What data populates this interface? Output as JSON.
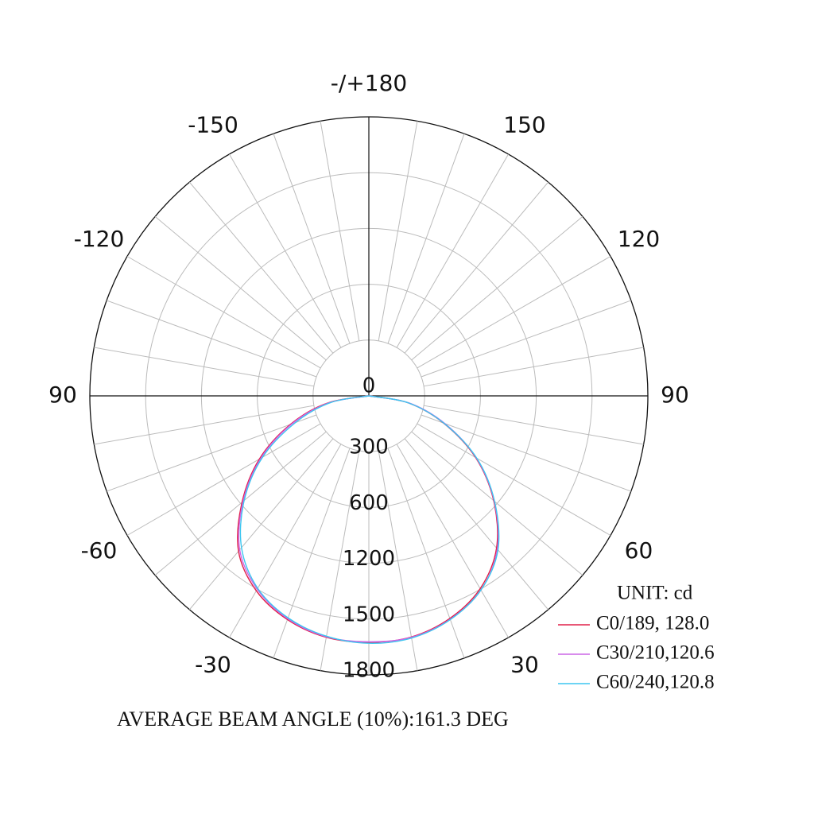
{
  "chart_data": {
    "type": "polar",
    "theta_ticks": [
      {
        "value": 180,
        "label": "-/+180"
      },
      -150,
      150,
      -120,
      120,
      {
        "value": -90,
        "label": "90"
      },
      90,
      -60,
      60,
      -30,
      30
    ],
    "theta_grid_step": 10,
    "rlim": [
      0,
      1800
    ],
    "rticks": [
      0,
      300,
      600,
      1200,
      1500,
      1800
    ],
    "x": [
      -90,
      -80,
      -70,
      -60,
      -50,
      -40,
      -30,
      -20,
      -10,
      0,
      10,
      20,
      30,
      40,
      50,
      60,
      70,
      80,
      90
    ],
    "series": [
      {
        "name": "C0/189, 128.0",
        "color": "#e0204a",
        "values": [
          0,
          230,
          450,
          760,
          1180,
          1390,
          1510,
          1580,
          1618,
          1625,
          1616,
          1573,
          1497,
          1368,
          1152,
          725,
          427,
          214,
          0
        ]
      },
      {
        "name": "C30/210,120.6",
        "color": "#cc66e6",
        "values": [
          0,
          220,
          440,
          740,
          1165,
          1380,
          1500,
          1575,
          1615,
          1622,
          1618,
          1578,
          1505,
          1375,
          1160,
          735,
          435,
          220,
          0
        ]
      },
      {
        "name": "C60/240,120.8",
        "color": "#3cc6f0",
        "values": [
          0,
          210,
          420,
          720,
          1150,
          1365,
          1495,
          1570,
          1612,
          1630,
          1622,
          1580,
          1505,
          1380,
          1165,
          740,
          430,
          215,
          0
        ]
      }
    ],
    "legend_title": "UNIT: cd",
    "footnote": "AVERAGE BEAM ANGLE (10%):161.3 DEG"
  }
}
